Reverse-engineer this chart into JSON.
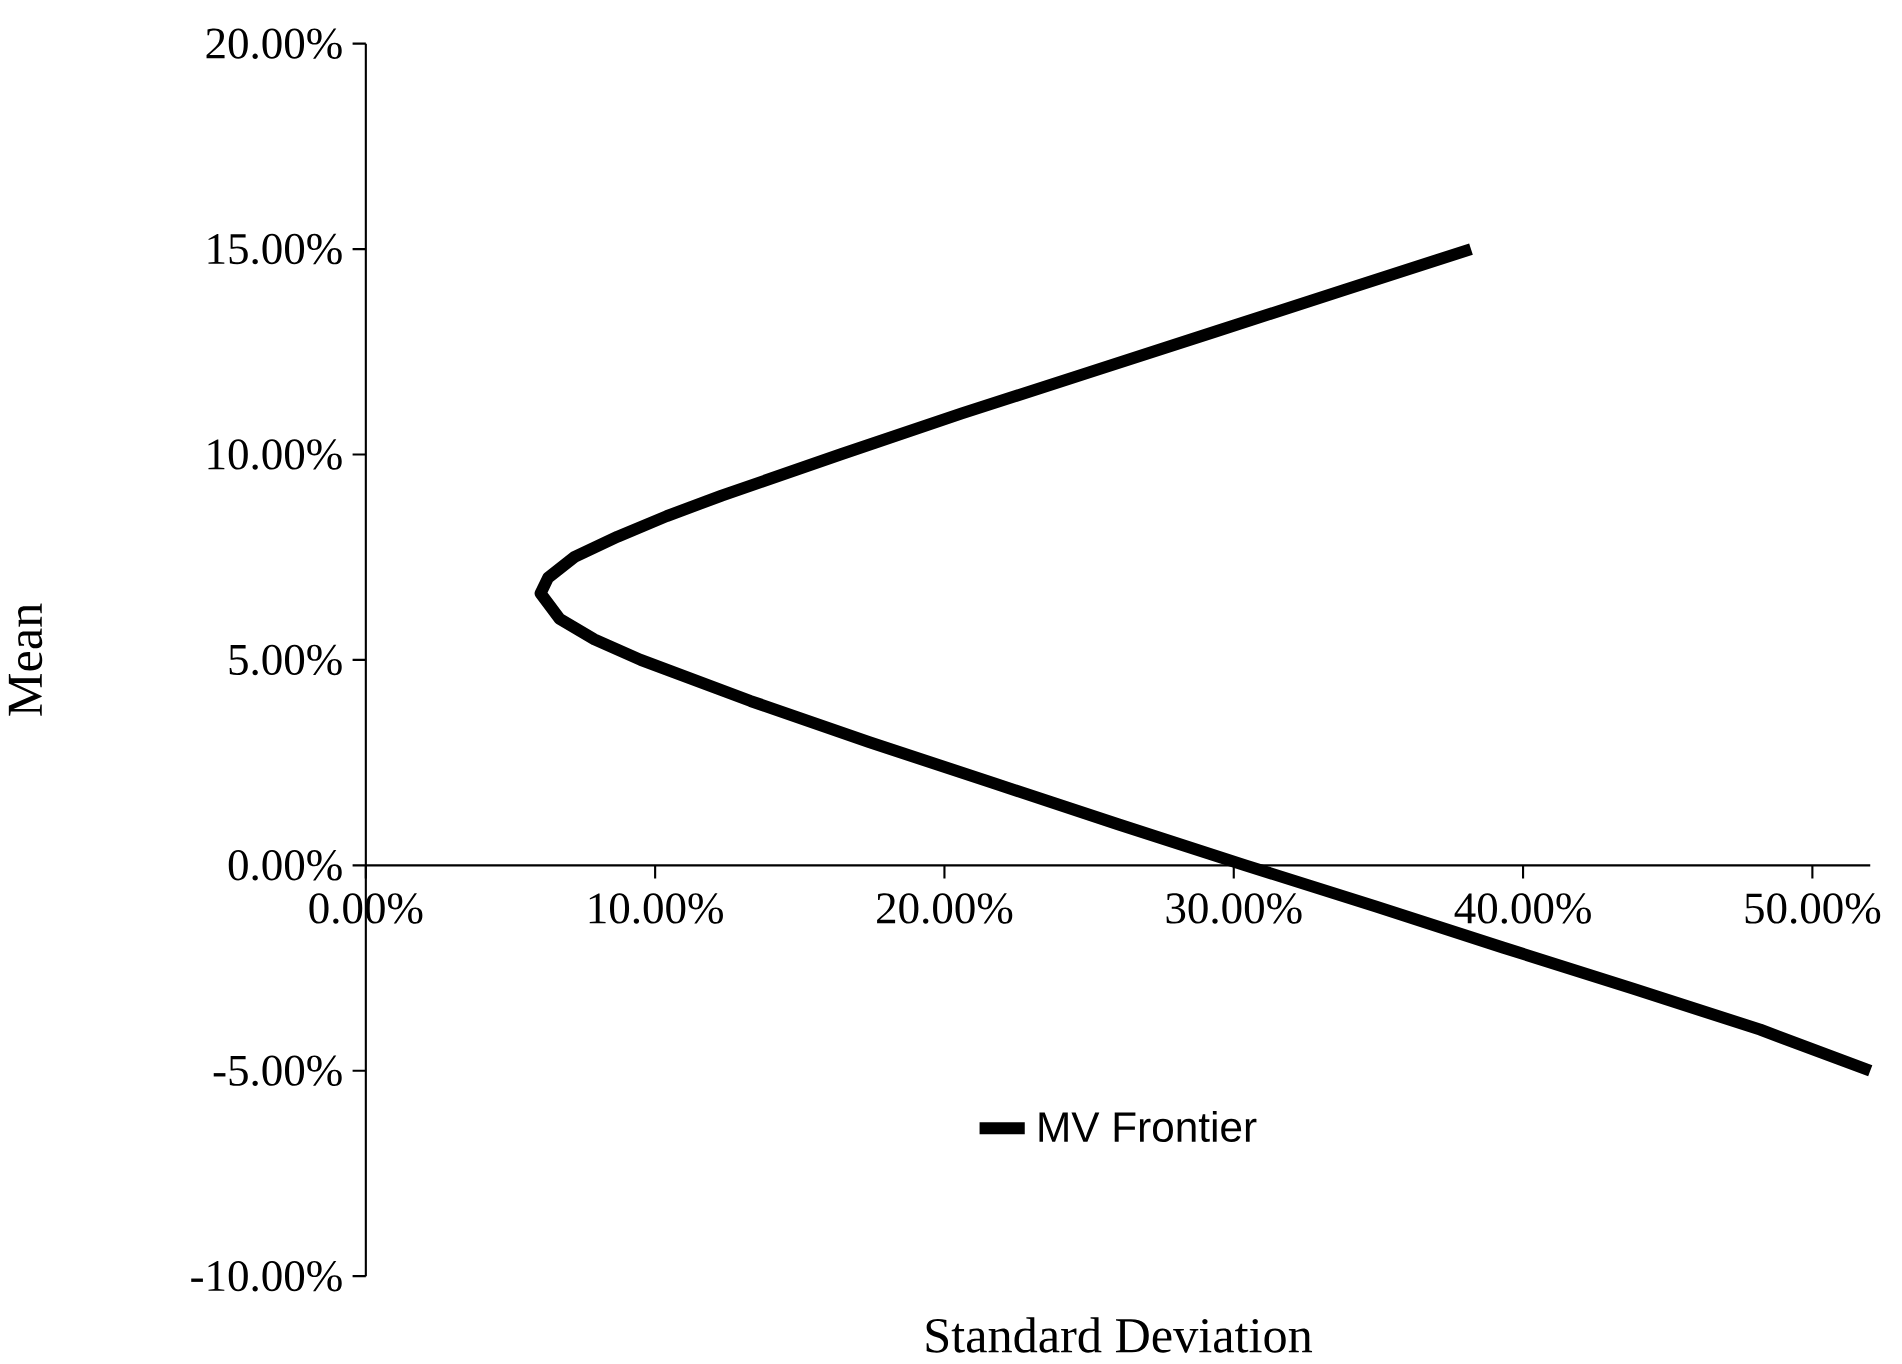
{
  "chart_data": {
    "type": "line",
    "xlabel": "Standard Deviation",
    "ylabel": "Mean",
    "xlim": [
      0,
      52
    ],
    "ylim": [
      -10,
      20
    ],
    "xticks": [
      {
        "value": 0,
        "label": "0.00%"
      },
      {
        "value": 10,
        "label": "10.00%"
      },
      {
        "value": 20,
        "label": "20.00%"
      },
      {
        "value": 30,
        "label": "30.00%"
      },
      {
        "value": 40,
        "label": "40.00%"
      },
      {
        "value": 50,
        "label": "50.00%"
      }
    ],
    "yticks": [
      {
        "value": -10,
        "label": "-10.00%"
      },
      {
        "value": -5,
        "label": "-5.00%"
      },
      {
        "value": 0,
        "label": "0.00%"
      },
      {
        "value": 5,
        "label": "5.00%"
      },
      {
        "value": 10,
        "label": "10.00%"
      },
      {
        "value": 15,
        "label": "15.00%"
      },
      {
        "value": 20,
        "label": "20.00%"
      }
    ],
    "legend": "bottom",
    "series": [
      {
        "name": "MV Frontier",
        "color": "#000000",
        "x": [
          38.2,
          33.8,
          29.4,
          25.0,
          20.6,
          16.4,
          12.3,
          10.4,
          8.7,
          7.2,
          6.3,
          6.04,
          6.7,
          7.9,
          9.5,
          13.3,
          17.4,
          21.7,
          26.0,
          30.4,
          34.9,
          39.3,
          43.8,
          48.2,
          52.0
        ],
        "values": [
          15,
          14,
          13,
          12,
          11,
          10,
          9,
          8.5,
          8,
          7.5,
          7,
          6.62,
          6,
          5.5,
          5,
          4,
          3,
          2,
          1,
          0,
          -1,
          -2,
          -3,
          -4,
          -5
        ]
      }
    ]
  }
}
